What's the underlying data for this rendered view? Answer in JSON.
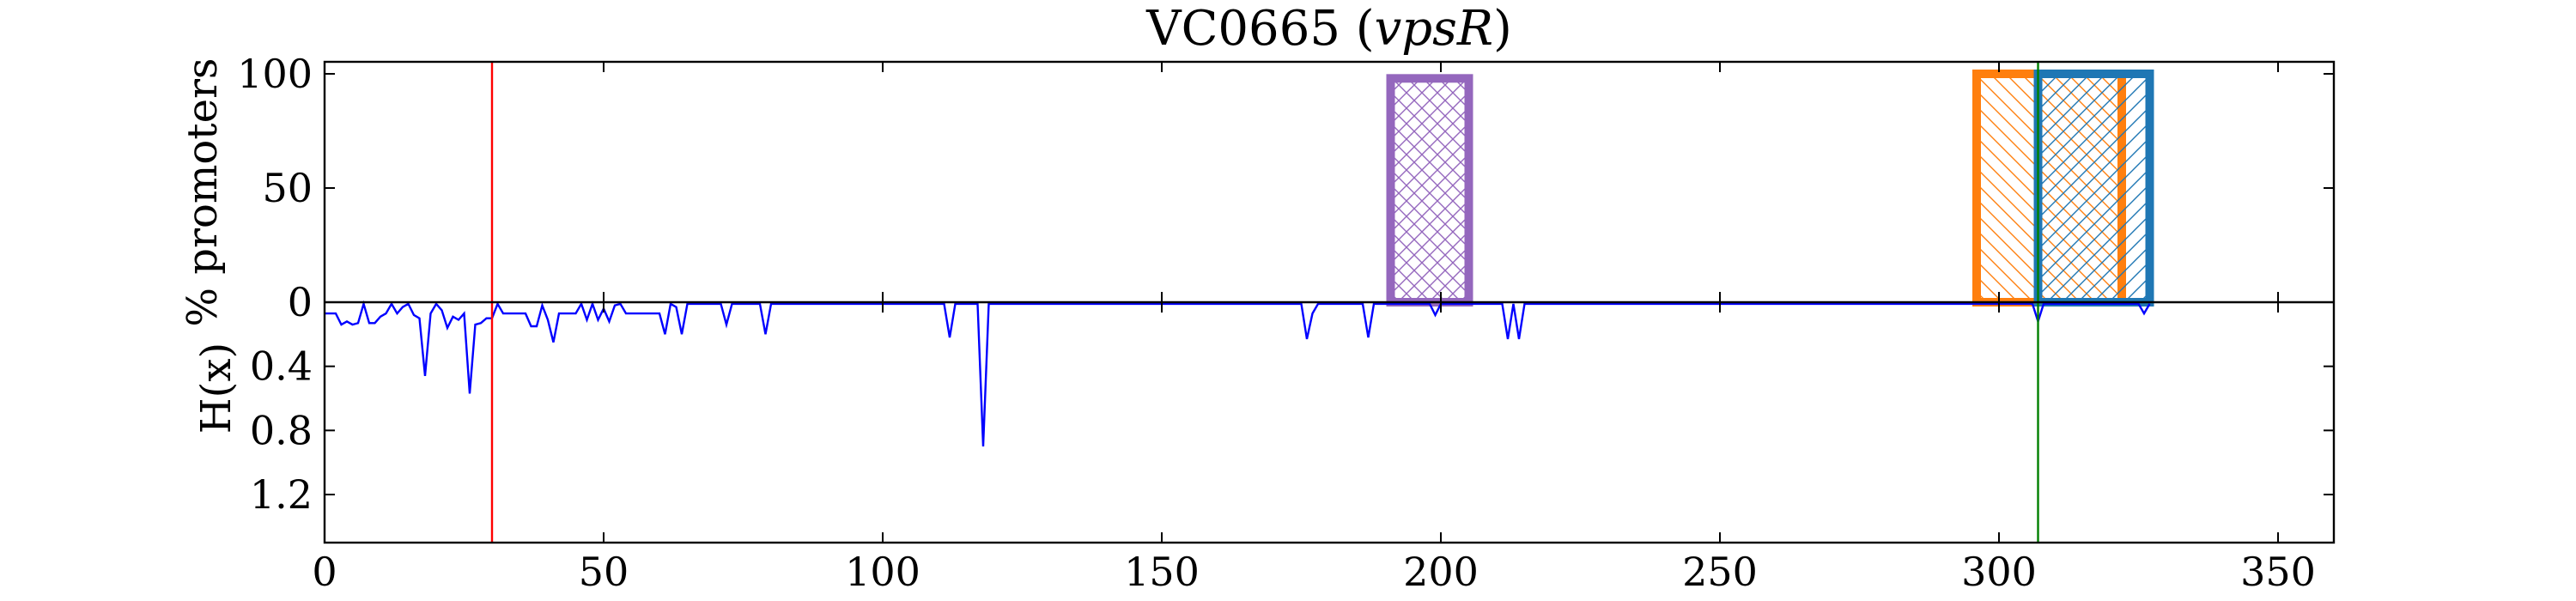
{
  "chart_data": {
    "type": "bar",
    "title_prefix": "VC0665 (",
    "title_gene": "vpsR",
    "title_suffix": ")",
    "xlim": [
      0,
      360
    ],
    "x_ticks": [
      0,
      50,
      100,
      150,
      200,
      250,
      300,
      350
    ],
    "top_panel": {
      "ylabel": "% promoters",
      "ylim": [
        0,
        100
      ],
      "y_ticks": [
        0,
        50,
        100
      ],
      "bars": [
        {
          "x_start": 191,
          "x_end": 205,
          "value": 98,
          "color": "#9467bd",
          "hatch": "cross"
        },
        {
          "x_start": 296,
          "x_end": 322,
          "value": 100,
          "color": "#ff7f0e",
          "hatch": "back"
        },
        {
          "x_start": 307,
          "x_end": 327,
          "value": 100,
          "color": "#1f77b4",
          "hatch": "diag"
        }
      ]
    },
    "bottom_panel": {
      "ylabel": "H(x)",
      "ylim": [
        1.5,
        0
      ],
      "y_ticks": [
        0.4,
        0.8,
        1.2
      ],
      "line_color": "#0000ff",
      "entropy": [
        [
          0,
          0.07
        ],
        [
          2,
          0.07
        ],
        [
          3,
          0.14
        ],
        [
          4,
          0.12
        ],
        [
          5,
          0.14
        ],
        [
          6,
          0.13
        ],
        [
          7,
          0.01
        ],
        [
          8,
          0.13
        ],
        [
          9,
          0.13
        ],
        [
          10,
          0.09
        ],
        [
          11,
          0.07
        ],
        [
          12,
          0.01
        ],
        [
          13,
          0.07
        ],
        [
          14,
          0.03
        ],
        [
          15,
          0.01
        ],
        [
          16,
          0.08
        ],
        [
          17,
          0.1
        ],
        [
          18,
          0.46
        ],
        [
          19,
          0.07
        ],
        [
          20,
          0.01
        ],
        [
          21,
          0.05
        ],
        [
          22,
          0.16
        ],
        [
          23,
          0.09
        ],
        [
          24,
          0.11
        ],
        [
          25,
          0.07
        ],
        [
          26,
          0.57
        ],
        [
          27,
          0.14
        ],
        [
          28,
          0.13
        ],
        [
          29,
          0.1
        ],
        [
          30,
          0.1
        ],
        [
          31,
          0.01
        ],
        [
          32,
          0.07
        ],
        [
          36,
          0.07
        ],
        [
          37,
          0.15
        ],
        [
          38,
          0.15
        ],
        [
          39,
          0.02
        ],
        [
          40,
          0.11
        ],
        [
          41,
          0.25
        ],
        [
          42,
          0.07
        ],
        [
          45,
          0.07
        ],
        [
          46,
          0.01
        ],
        [
          47,
          0.11
        ],
        [
          48,
          0.01
        ],
        [
          49,
          0.11
        ],
        [
          50,
          0.04
        ],
        [
          51,
          0.12
        ],
        [
          52,
          0.02
        ],
        [
          53,
          0.01
        ],
        [
          54,
          0.07
        ],
        [
          60,
          0.07
        ],
        [
          61,
          0.2
        ],
        [
          62,
          0.01
        ],
        [
          63,
          0.03
        ],
        [
          64,
          0.2
        ],
        [
          65,
          0.01
        ],
        [
          71,
          0.01
        ],
        [
          72,
          0.14
        ],
        [
          73,
          0.01
        ],
        [
          78,
          0.01
        ],
        [
          79,
          0.2
        ],
        [
          80,
          0.01
        ],
        [
          111,
          0.01
        ],
        [
          112,
          0.22
        ],
        [
          113,
          0.01
        ],
        [
          117,
          0.01
        ],
        [
          118,
          0.9
        ],
        [
          119,
          0.01
        ],
        [
          175,
          0.01
        ],
        [
          176,
          0.23
        ],
        [
          177,
          0.07
        ],
        [
          178,
          0.01
        ],
        [
          186,
          0.01
        ],
        [
          187,
          0.22
        ],
        [
          188,
          0.01
        ],
        [
          198,
          0.01
        ],
        [
          199,
          0.08
        ],
        [
          200,
          0.01
        ],
        [
          211,
          0.01
        ],
        [
          212,
          0.23
        ],
        [
          213,
          0.01
        ],
        [
          214,
          0.23
        ],
        [
          215,
          0.01
        ],
        [
          306,
          0.01
        ],
        [
          307,
          0.12
        ],
        [
          308,
          0.01
        ],
        [
          325,
          0.01
        ],
        [
          326,
          0.07
        ],
        [
          327,
          0.01
        ]
      ]
    },
    "markers": [
      {
        "x": 30,
        "color": "#ff0000"
      },
      {
        "x": 307,
        "color": "#008000"
      }
    ]
  }
}
